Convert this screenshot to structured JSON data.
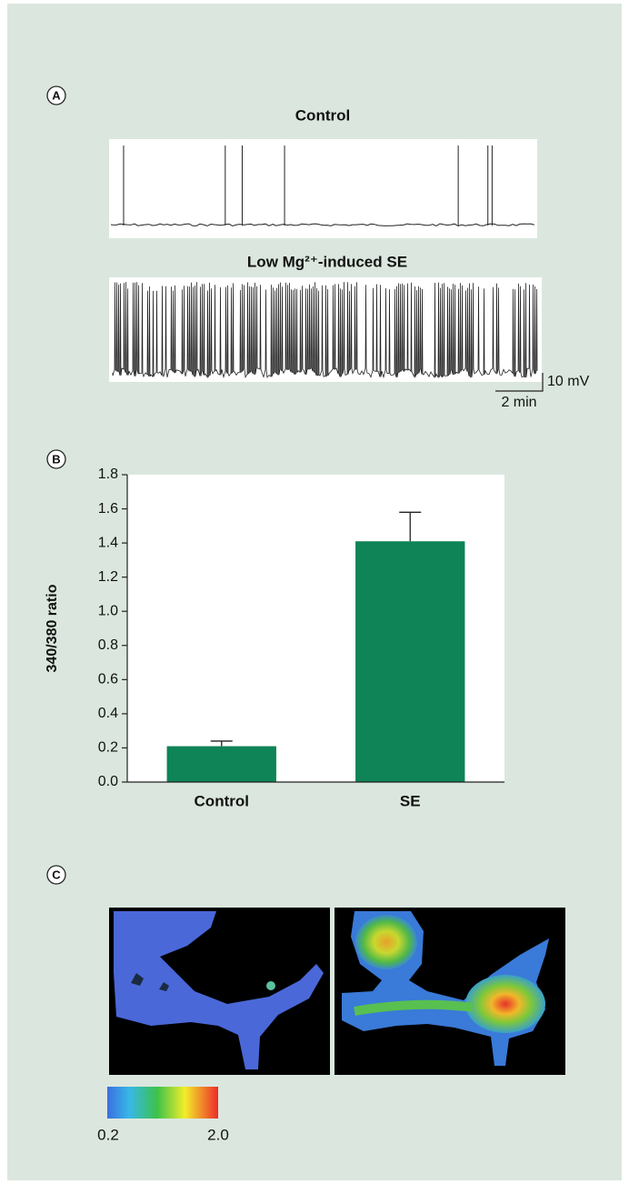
{
  "panels": {
    "a": {
      "label": "A",
      "traces": [
        {
          "title": "Control"
        },
        {
          "title": "Low Mg²⁺-induced SE"
        }
      ],
      "scale_bar": {
        "y_label": "10 mV",
        "x_label": "2 min"
      }
    },
    "b": {
      "label": "B"
    },
    "c": {
      "label": "C",
      "colorbar": {
        "min_label": "0.2",
        "max_label": "2.0"
      }
    }
  },
  "chart_data": {
    "type": "bar",
    "ylabel": "340/380 ratio",
    "categories": [
      "Control",
      "SE"
    ],
    "values": [
      0.21,
      1.41
    ],
    "errors": [
      0.03,
      0.17
    ],
    "color": "#0e8457",
    "ylim": [
      0,
      1.8
    ],
    "yticks": [
      {
        "value": 0,
        "label": "0.0"
      },
      0.2,
      0.4,
      0.6,
      0.8,
      {
        "value": 1,
        "label": "1.0"
      },
      1.2,
      1.4,
      1.6,
      1.8
    ]
  }
}
